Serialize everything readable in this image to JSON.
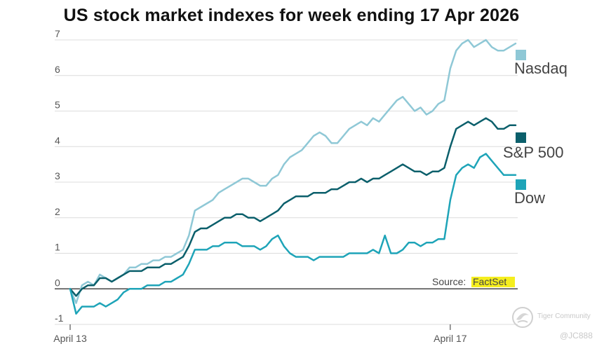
{
  "chart_data": {
    "type": "line",
    "title": "US stock market indexes for week ending 17 Apr 2026",
    "xlabel": "",
    "ylabel": "",
    "ylim": [
      -1,
      7
    ],
    "y_ticks": [
      "7",
      "6",
      "5",
      "4",
      "3",
      "2",
      "1",
      "0",
      "-1"
    ],
    "x_ticks": [
      "April 13",
      "April 17"
    ],
    "grid": true,
    "legend": "right",
    "source_label": "Source:",
    "source_name": "FactSet",
    "series": [
      {
        "name": "Nasdaq",
        "color": "#8fc8d6",
        "values": [
          0.0,
          -0.4,
          0.1,
          0.2,
          0.1,
          0.4,
          0.3,
          0.2,
          0.3,
          0.4,
          0.6,
          0.6,
          0.7,
          0.7,
          0.8,
          0.8,
          0.9,
          0.9,
          1.0,
          1.1,
          1.5,
          2.2,
          2.3,
          2.4,
          2.5,
          2.7,
          2.8,
          2.9,
          3.0,
          3.1,
          3.1,
          3.0,
          2.9,
          2.9,
          3.1,
          3.2,
          3.5,
          3.7,
          3.8,
          3.9,
          4.1,
          4.3,
          4.4,
          4.3,
          4.1,
          4.1,
          4.3,
          4.5,
          4.6,
          4.7,
          4.6,
          4.8,
          4.7,
          4.9,
          5.1,
          5.3,
          5.4,
          5.2,
          5.0,
          5.1,
          4.9,
          5.0,
          5.2,
          5.3,
          6.2,
          6.7,
          6.9,
          7.0,
          6.8,
          6.9,
          7.0,
          6.8,
          6.7,
          6.7,
          6.8,
          6.9
        ]
      },
      {
        "name": "S&P 500",
        "color": "#0b5f6b",
        "values": [
          0.0,
          -0.2,
          0.0,
          0.1,
          0.1,
          0.3,
          0.3,
          0.2,
          0.3,
          0.4,
          0.5,
          0.5,
          0.5,
          0.6,
          0.6,
          0.6,
          0.7,
          0.7,
          0.8,
          0.9,
          1.2,
          1.6,
          1.7,
          1.7,
          1.8,
          1.9,
          2.0,
          2.0,
          2.1,
          2.1,
          2.0,
          2.0,
          1.9,
          2.0,
          2.1,
          2.2,
          2.4,
          2.5,
          2.6,
          2.6,
          2.6,
          2.7,
          2.7,
          2.7,
          2.8,
          2.8,
          2.9,
          3.0,
          3.0,
          3.1,
          3.0,
          3.1,
          3.1,
          3.2,
          3.3,
          3.4,
          3.5,
          3.4,
          3.3,
          3.3,
          3.2,
          3.3,
          3.3,
          3.4,
          4.0,
          4.5,
          4.6,
          4.7,
          4.6,
          4.7,
          4.8,
          4.7,
          4.5,
          4.5,
          4.6,
          4.6
        ]
      },
      {
        "name": "Dow",
        "color": "#1ea4b8",
        "values": [
          0.0,
          -0.7,
          -0.5,
          -0.5,
          -0.5,
          -0.4,
          -0.5,
          -0.4,
          -0.3,
          -0.1,
          0.0,
          0.0,
          0.0,
          0.1,
          0.1,
          0.1,
          0.2,
          0.2,
          0.3,
          0.4,
          0.7,
          1.1,
          1.1,
          1.1,
          1.2,
          1.2,
          1.3,
          1.3,
          1.3,
          1.2,
          1.2,
          1.2,
          1.1,
          1.2,
          1.4,
          1.5,
          1.2,
          1.0,
          0.9,
          0.9,
          0.9,
          0.8,
          0.9,
          0.9,
          0.9,
          0.9,
          0.9,
          1.0,
          1.0,
          1.0,
          1.0,
          1.1,
          1.0,
          1.5,
          1.0,
          1.0,
          1.1,
          1.3,
          1.3,
          1.2,
          1.3,
          1.3,
          1.4,
          1.4,
          2.5,
          3.2,
          3.4,
          3.5,
          3.4,
          3.7,
          3.8,
          3.6,
          3.4,
          3.2,
          3.2,
          3.2
        ]
      }
    ]
  },
  "watermark": {
    "brand": "Tiger Community",
    "user": "@JC888"
  }
}
